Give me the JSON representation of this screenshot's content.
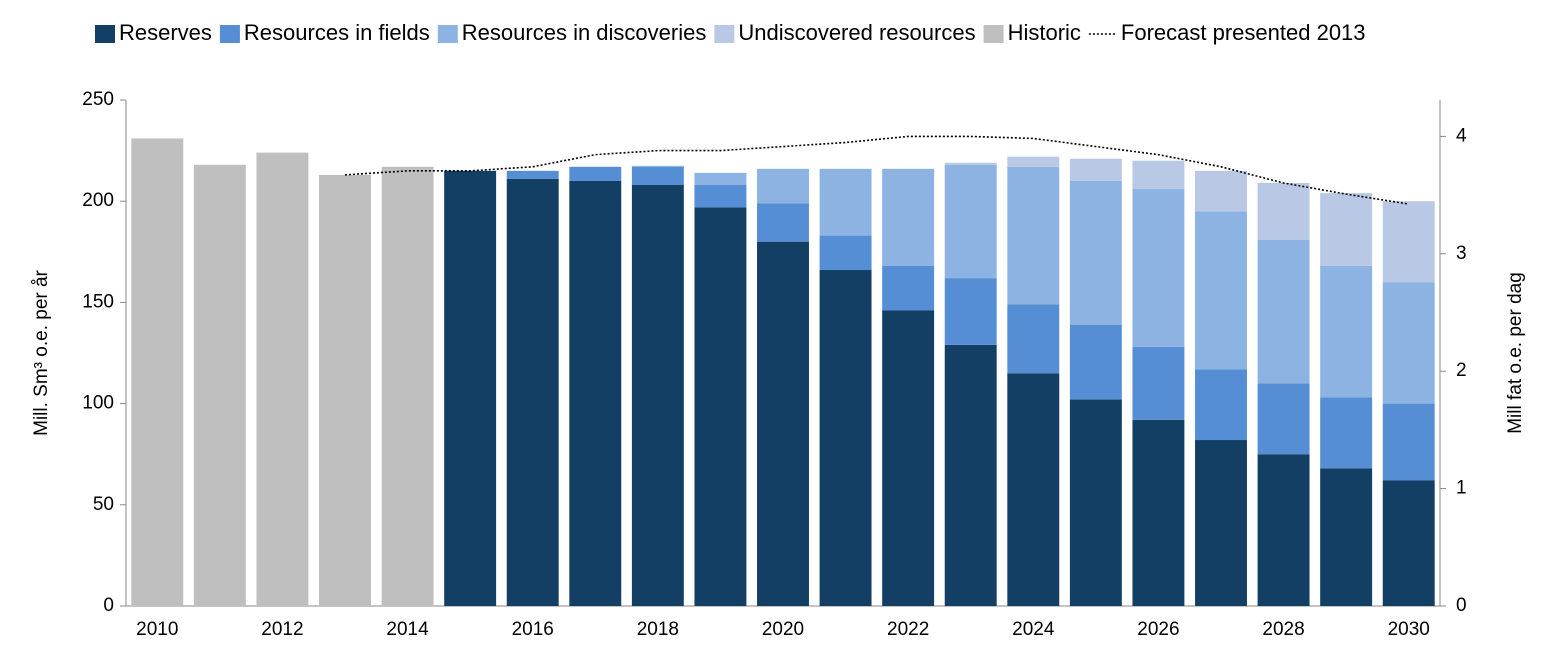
{
  "chart_data": {
    "type": "bar",
    "stacked": true,
    "categories": [
      "2010",
      null,
      "2012",
      null,
      "2014",
      null,
      "2016",
      null,
      "2018",
      null,
      "2020",
      null,
      "2022",
      null,
      "2024",
      null,
      "2026",
      null,
      "2028",
      null,
      "2030"
    ],
    "y_label": "Mill. Sm³ o.e. per år",
    "y2_label": "Mill fat o.e. per dag",
    "ylim": [
      0,
      250
    ],
    "yticks": [
      0,
      50,
      100,
      150,
      200,
      250
    ],
    "y2lim": [
      0,
      4.31
    ],
    "y2ticks": [
      0,
      1,
      2,
      3,
      4
    ],
    "legend": "top",
    "series": [
      {
        "name": "Reserves",
        "color": "#123f63",
        "values": [
          null,
          null,
          null,
          null,
          null,
          215,
          211,
          210,
          208,
          197,
          180,
          166,
          146,
          129,
          115,
          102,
          92,
          82,
          75,
          68,
          62
        ]
      },
      {
        "name": "Resources in fields",
        "color": "#558ed5",
        "values": [
          null,
          null,
          null,
          null,
          null,
          0,
          4,
          7,
          9,
          11,
          19,
          17,
          22,
          33,
          34,
          37,
          36,
          35,
          35,
          35,
          38
        ]
      },
      {
        "name": "Resources in discoveries",
        "color": "#8db3e2",
        "values": [
          null,
          null,
          null,
          null,
          null,
          0,
          0,
          0,
          0.5,
          6,
          17,
          33,
          48,
          56,
          68,
          71,
          78,
          78,
          71,
          65,
          60
        ]
      },
      {
        "name": "Undiscovered resources",
        "color": "#b9c8e5",
        "values": [
          null,
          null,
          null,
          null,
          null,
          0,
          0,
          0,
          0,
          0,
          0,
          0,
          0,
          1,
          5,
          11,
          14,
          20,
          28,
          36,
          40
        ]
      },
      {
        "name": "Historic",
        "color": "#bfbfbf",
        "values": [
          231,
          218,
          224,
          213,
          217,
          null,
          null,
          null,
          null,
          null,
          null,
          null,
          null,
          null,
          null,
          null,
          null,
          null,
          null,
          null,
          null
        ]
      },
      {
        "name": "Forecast presented 2013",
        "color": "#000000",
        "style": "dotted-line",
        "values": [
          null,
          null,
          null,
          213,
          215,
          215,
          217,
          223,
          225,
          225,
          227,
          229,
          232,
          232,
          231,
          227,
          223,
          217,
          209,
          203.5,
          198.6
        ]
      }
    ]
  }
}
